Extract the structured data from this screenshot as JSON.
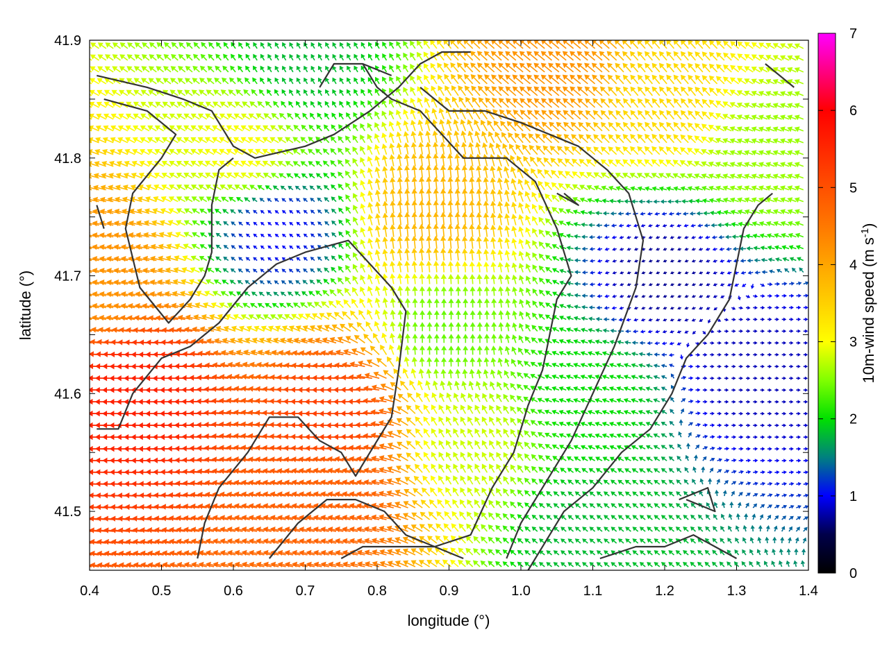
{
  "chart_data": {
    "type": "vector-field",
    "title": "",
    "xlabel": "longitude (°)",
    "ylabel": "latitude (°)",
    "xlim": [
      0.4,
      1.4
    ],
    "ylim": [
      41.45,
      41.9
    ],
    "xticks": [
      "0.4",
      "0.5",
      "0.6",
      "0.7",
      "0.8",
      "0.9",
      "1.0",
      "1.1",
      "1.2",
      "1.3",
      "1.4"
    ],
    "yticks": [
      "41.5",
      "41.6",
      "41.7",
      "41.8",
      "41.9"
    ],
    "colorbar": {
      "label": "10m-wind speed (m s-1)",
      "label_main": "10m-wind speed (m s",
      "label_sup": "-1",
      "label_end": ")",
      "range": [
        0,
        7
      ],
      "ticks": [
        "0",
        "1",
        "2",
        "3",
        "4",
        "5",
        "6",
        "7"
      ],
      "palette": [
        {
          "v": 0.0,
          "c": "#000000"
        },
        {
          "v": 0.5,
          "c": "#00004a"
        },
        {
          "v": 1.0,
          "c": "#0000ff"
        },
        {
          "v": 1.5,
          "c": "#008080"
        },
        {
          "v": 2.0,
          "c": "#00e000"
        },
        {
          "v": 2.5,
          "c": "#80ff00"
        },
        {
          "v": 3.0,
          "c": "#ffff00"
        },
        {
          "v": 3.5,
          "c": "#ffd000"
        },
        {
          "v": 4.0,
          "c": "#ffa500"
        },
        {
          "v": 4.5,
          "c": "#ff7800"
        },
        {
          "v": 5.0,
          "c": "#ff5000"
        },
        {
          "v": 5.5,
          "c": "#ff2800"
        },
        {
          "v": 6.0,
          "c": "#ff0000"
        },
        {
          "v": 6.5,
          "c": "#ff0080"
        },
        {
          "v": 7.0,
          "c": "#ff00ff"
        }
      ]
    },
    "field": {
      "lon_step": 0.01,
      "lat_step": 0.01,
      "centers": [
        {
          "lon": 0.48,
          "lat": 41.6,
          "speed": 5.6,
          "dir": 180
        },
        {
          "lon": 0.75,
          "lat": 41.58,
          "speed": 5.2,
          "dir": 180
        },
        {
          "lon": 0.76,
          "lat": 41.52,
          "speed": 4.8,
          "dir": 170
        },
        {
          "lon": 0.43,
          "lat": 41.7,
          "speed": 4.2,
          "dir": 170
        },
        {
          "lon": 0.88,
          "lat": 41.75,
          "speed": 3.8,
          "dir": 95
        },
        {
          "lon": 1.06,
          "lat": 41.88,
          "speed": 4.2,
          "dir": 140
        },
        {
          "lon": 1.2,
          "lat": 41.85,
          "speed": 3.4,
          "dir": 130
        },
        {
          "lon": 0.62,
          "lat": 41.8,
          "speed": 3.0,
          "dir": 150
        },
        {
          "lon": 0.93,
          "lat": 41.55,
          "speed": 2.8,
          "dir": 120
        },
        {
          "lon": 1.1,
          "lat": 41.6,
          "speed": 2.0,
          "dir": 160
        },
        {
          "lon": 1.32,
          "lat": 41.62,
          "speed": 0.8,
          "dir": 0
        },
        {
          "lon": 1.2,
          "lat": 41.7,
          "speed": 0.7,
          "dir": 200
        },
        {
          "lon": 0.66,
          "lat": 41.74,
          "speed": 1.0,
          "dir": 140
        },
        {
          "lon": 0.7,
          "lat": 41.88,
          "speed": 1.8,
          "dir": 120
        },
        {
          "lon": 1.08,
          "lat": 41.48,
          "speed": 1.8,
          "dir": 140
        },
        {
          "lon": 0.9,
          "lat": 41.65,
          "speed": 2.4,
          "dir": 90
        },
        {
          "lon": 1.35,
          "lat": 41.8,
          "speed": 2.6,
          "dir": 160
        }
      ]
    },
    "contours": [
      [
        [
          0.41,
          41.87
        ],
        [
          0.48,
          41.86
        ],
        [
          0.53,
          41.85
        ],
        [
          0.57,
          41.84
        ],
        [
          0.59,
          41.82
        ],
        [
          0.6,
          41.81
        ],
        [
          0.63,
          41.8
        ],
        [
          0.7,
          41.81
        ],
        [
          0.74,
          41.82
        ],
        [
          0.79,
          41.84
        ],
        [
          0.83,
          41.86
        ],
        [
          0.86,
          41.88
        ],
        [
          0.89,
          41.89
        ],
        [
          0.93,
          41.89
        ]
      ],
      [
        [
          0.42,
          41.85
        ],
        [
          0.48,
          41.84
        ],
        [
          0.52,
          41.82
        ],
        [
          0.5,
          41.8
        ],
        [
          0.46,
          41.77
        ],
        [
          0.45,
          41.74
        ],
        [
          0.47,
          41.69
        ],
        [
          0.51,
          41.66
        ],
        [
          0.54,
          41.68
        ],
        [
          0.56,
          41.7
        ],
        [
          0.57,
          41.72
        ],
        [
          0.57,
          41.76
        ],
        [
          0.58,
          41.79
        ],
        [
          0.6,
          41.8
        ]
      ],
      [
        [
          0.41,
          41.57
        ],
        [
          0.44,
          41.57
        ],
        [
          0.46,
          41.6
        ],
        [
          0.5,
          41.63
        ],
        [
          0.54,
          41.64
        ],
        [
          0.58,
          41.66
        ],
        [
          0.62,
          41.69
        ],
        [
          0.66,
          41.71
        ],
        [
          0.7,
          41.72
        ],
        [
          0.76,
          41.73
        ],
        [
          0.79,
          41.71
        ],
        [
          0.82,
          41.69
        ],
        [
          0.84,
          41.67
        ],
        [
          0.83,
          41.62
        ],
        [
          0.82,
          41.58
        ],
        [
          0.8,
          41.56
        ],
        [
          0.77,
          41.53
        ],
        [
          0.75,
          41.55
        ],
        [
          0.72,
          41.56
        ],
        [
          0.69,
          41.58
        ],
        [
          0.65,
          41.58
        ],
        [
          0.62,
          41.55
        ],
        [
          0.58,
          41.52
        ],
        [
          0.56,
          41.49
        ],
        [
          0.55,
          41.46
        ]
      ],
      [
        [
          0.65,
          41.46
        ],
        [
          0.69,
          41.49
        ],
        [
          0.73,
          41.51
        ],
        [
          0.77,
          41.51
        ],
        [
          0.81,
          41.5
        ],
        [
          0.84,
          41.48
        ],
        [
          0.88,
          41.47
        ],
        [
          0.92,
          41.46
        ]
      ],
      [
        [
          0.75,
          41.46
        ],
        [
          0.78,
          41.47
        ],
        [
          0.83,
          41.47
        ],
        [
          0.88,
          41.47
        ],
        [
          0.93,
          41.48
        ],
        [
          0.96,
          41.52
        ],
        [
          0.99,
          41.55
        ],
        [
          1.01,
          41.59
        ],
        [
          1.03,
          41.62
        ],
        [
          1.05,
          41.68
        ],
        [
          1.07,
          41.7
        ],
        [
          1.05,
          41.74
        ],
        [
          1.02,
          41.78
        ],
        [
          0.98,
          41.8
        ],
        [
          0.92,
          41.8
        ],
        [
          0.89,
          41.82
        ],
        [
          0.86,
          41.84
        ],
        [
          0.82,
          41.85
        ],
        [
          0.8,
          41.86
        ],
        [
          0.78,
          41.88
        ]
      ],
      [
        [
          1.01,
          41.45
        ],
        [
          1.06,
          41.5
        ],
        [
          1.1,
          41.52
        ],
        [
          1.14,
          41.55
        ],
        [
          1.18,
          41.57
        ],
        [
          1.21,
          41.6
        ],
        [
          1.23,
          41.63
        ],
        [
          1.26,
          41.65
        ],
        [
          1.29,
          41.68
        ],
        [
          1.3,
          41.71
        ],
        [
          1.31,
          41.74
        ],
        [
          1.33,
          41.76
        ],
        [
          1.35,
          41.77
        ]
      ],
      [
        [
          0.86,
          41.86
        ],
        [
          0.9,
          41.84
        ],
        [
          0.95,
          41.84
        ],
        [
          1.0,
          41.83
        ],
        [
          1.04,
          41.82
        ],
        [
          1.08,
          41.81
        ],
        [
          1.12,
          41.79
        ],
        [
          1.15,
          41.77
        ],
        [
          1.17,
          41.73
        ],
        [
          1.16,
          41.69
        ],
        [
          1.13,
          41.64
        ],
        [
          1.1,
          41.6
        ],
        [
          1.07,
          41.56
        ],
        [
          1.04,
          41.53
        ],
        [
          1.0,
          41.49
        ],
        [
          0.98,
          41.46
        ]
      ],
      [
        [
          1.22,
          41.51
        ],
        [
          1.26,
          41.52
        ],
        [
          1.27,
          41.5
        ],
        [
          1.23,
          41.51
        ]
      ],
      [
        [
          1.11,
          41.46
        ],
        [
          1.16,
          41.47
        ],
        [
          1.2,
          41.47
        ],
        [
          1.24,
          41.48
        ],
        [
          1.27,
          41.47
        ],
        [
          1.3,
          41.46
        ]
      ],
      [
        [
          0.72,
          41.86
        ],
        [
          0.74,
          41.88
        ],
        [
          0.78,
          41.88
        ],
        [
          0.82,
          41.87
        ]
      ],
      [
        [
          1.34,
          41.88
        ],
        [
          1.36,
          41.87
        ],
        [
          1.38,
          41.86
        ]
      ],
      [
        [
          1.05,
          41.77
        ],
        [
          1.08,
          41.76
        ],
        [
          1.06,
          41.77
        ]
      ],
      [
        [
          0.41,
          41.76
        ],
        [
          0.42,
          41.74
        ]
      ]
    ]
  }
}
